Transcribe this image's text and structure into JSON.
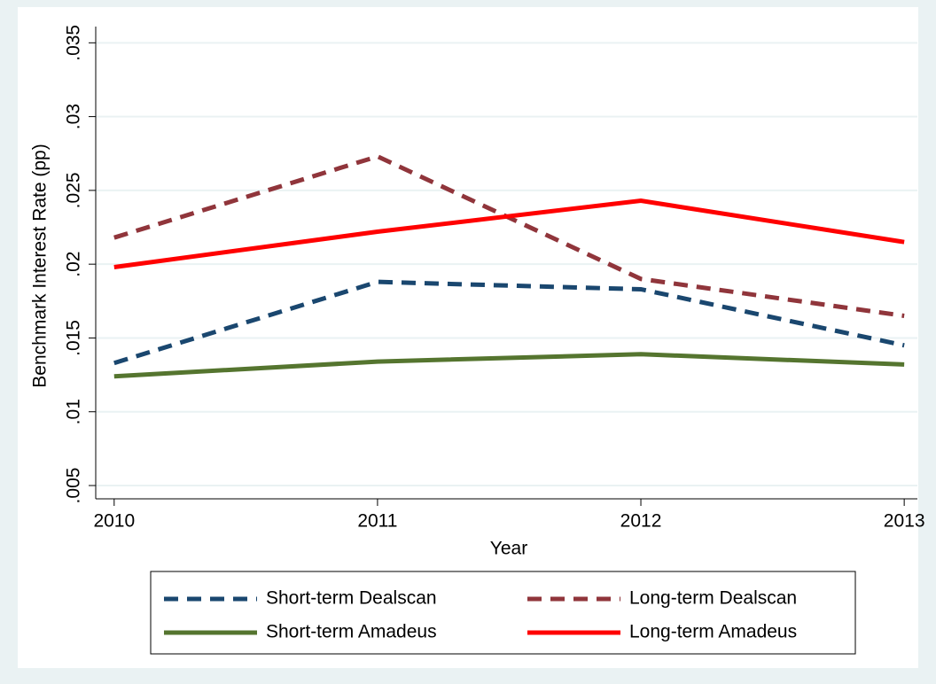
{
  "chart_data": {
    "type": "line",
    "xlabel": "Year",
    "ylabel": "Benchmark Interest Rate (pp)",
    "x": [
      2010,
      2011,
      2012,
      2013
    ],
    "xlim": [
      2009.93,
      2013.05
    ],
    "xticks": [
      2010,
      2011,
      2012,
      2013
    ],
    "ylim": [
      0.0041,
      0.0361
    ],
    "yticks": [
      {
        "value": 0.005,
        "label": ".005"
      },
      {
        "value": 0.01,
        "label": ".01"
      },
      {
        "value": 0.015,
        "label": ".015"
      },
      {
        "value": 0.02,
        "label": ".02"
      },
      {
        "value": 0.025,
        "label": ".025"
      },
      {
        "value": 0.03,
        "label": ".03"
      },
      {
        "value": 0.035,
        "label": ".035"
      }
    ],
    "grid": true,
    "series": [
      {
        "name": "Short-term Dealscan",
        "color": "#1a476f",
        "dash": true,
        "values": [
          0.0133,
          0.0188,
          0.0183,
          0.0145
        ]
      },
      {
        "name": "Long-term Dealscan",
        "color": "#90353b",
        "dash": true,
        "values": [
          0.0218,
          0.0273,
          0.019,
          0.0165
        ]
      },
      {
        "name": "Short-term Amadeus",
        "color": "#55752f",
        "dash": false,
        "values": [
          0.0124,
          0.0134,
          0.0139,
          0.0132
        ]
      },
      {
        "name": "Long-term Amadeus",
        "color": "#ff0000",
        "dash": false,
        "values": [
          0.0198,
          0.0222,
          0.0243,
          0.0215
        ]
      }
    ]
  }
}
